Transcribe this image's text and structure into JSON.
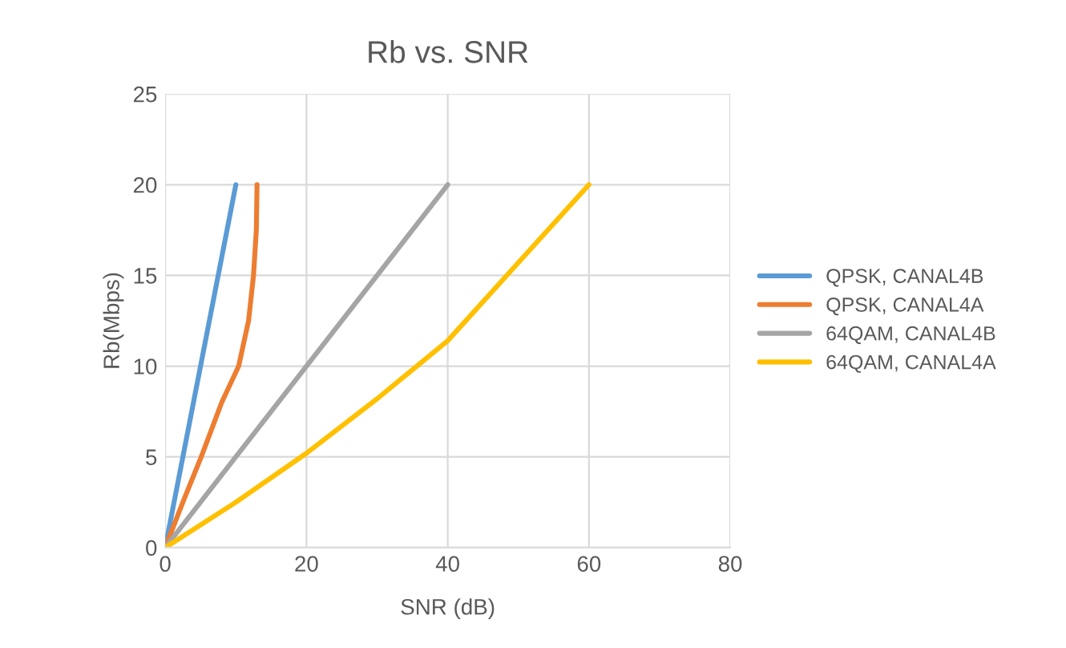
{
  "chart_data": {
    "type": "line",
    "title": "Rb vs. SNR",
    "xlabel": "SNR (dB)",
    "ylabel": "Rb(Mbps)",
    "xlim": [
      0,
      80
    ],
    "xticks": [
      0,
      20,
      40,
      60,
      80
    ],
    "ylim": [
      0,
      25
    ],
    "yticks": [
      0,
      5,
      10,
      15,
      20,
      25
    ],
    "grid": true,
    "legend": "right",
    "marker": "none",
    "line_style": "solid",
    "series": [
      {
        "name": "QPSK, CANAL4B",
        "color": "#5b9bd5",
        "x": [
          0,
          10
        ],
        "values": [
          0,
          20
        ]
      },
      {
        "name": "QPSK, CANAL4A",
        "color": "#ed7d31",
        "x": [
          0,
          2.5,
          5.1,
          8,
          10.4,
          11.8,
          12.5,
          12.9,
          13
        ],
        "values": [
          0,
          2.5,
          5,
          8,
          10,
          12.5,
          15,
          17.5,
          20
        ]
      },
      {
        "name": "64QAM, CANAL4B",
        "color": "#a5a5a5",
        "x": [
          0,
          40
        ],
        "values": [
          0,
          20
        ]
      },
      {
        "name": "64QAM, CANAL4A",
        "color": "#ffc000",
        "x": [
          0,
          10,
          20,
          30,
          40,
          50,
          60
        ],
        "values": [
          0,
          2.5,
          5.2,
          8.2,
          11.4,
          15.7,
          20
        ]
      }
    ]
  }
}
